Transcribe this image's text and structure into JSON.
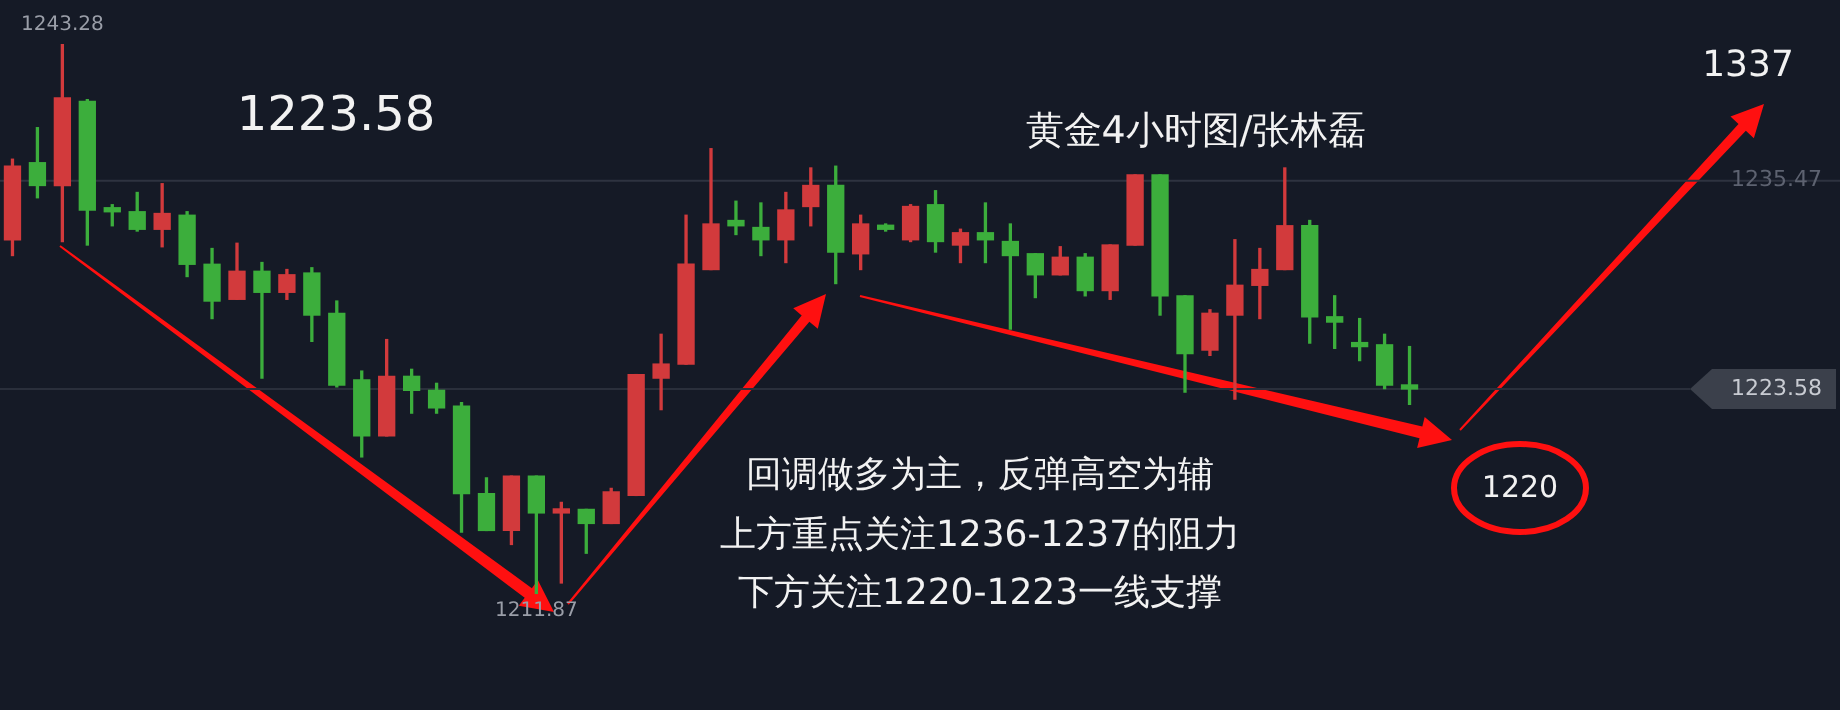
{
  "chart_data": {
    "type": "candlestick",
    "title": "黄金4小时图/张林磊",
    "categories": [
      null,
      null,
      null,
      null,
      null,
      null,
      null,
      null,
      null,
      null,
      null,
      null,
      null,
      null,
      null,
      null,
      null,
      null,
      null,
      null,
      null,
      null,
      null,
      null,
      null,
      null,
      null,
      null,
      null,
      null,
      null,
      null,
      null,
      null,
      null,
      null,
      null,
      null,
      null,
      null,
      null,
      null,
      null,
      null,
      null,
      null,
      null,
      null,
      null,
      null,
      null,
      null,
      null,
      null,
      null,
      null,
      null
    ],
    "ohlc": [
      [
        1232.1,
        1236.7,
        1231.2,
        1236.3
      ],
      [
        1236.5,
        1238.5,
        1234.5,
        1235.2
      ],
      [
        1235.2,
        1243.28,
        1232.0,
        1240.2
      ],
      [
        1240.0,
        1240.1,
        1231.8,
        1233.8
      ],
      [
        1233.9,
        1234.1,
        1232.9,
        1233.7
      ],
      [
        1233.7,
        1234.8,
        1232.6,
        1232.7
      ],
      [
        1232.7,
        1235.3,
        1231.7,
        1233.6
      ],
      [
        1233.5,
        1233.7,
        1230.0,
        1230.7
      ],
      [
        1230.7,
        1231.6,
        1227.6,
        1228.6
      ],
      [
        1228.7,
        1231.9,
        1228.7,
        1230.3
      ],
      [
        1230.3,
        1230.8,
        1224.2,
        1229.1
      ],
      [
        1229.1,
        1230.4,
        1228.7,
        1230.1
      ],
      [
        1230.2,
        1230.5,
        1226.3,
        1227.8
      ],
      [
        1227.9,
        1228.6,
        1223.7,
        1223.8
      ],
      [
        1224.1,
        1224.6,
        1219.7,
        1220.9
      ],
      [
        1220.9,
        1226.4,
        1220.9,
        1224.3
      ],
      [
        1224.3,
        1224.7,
        1222.2,
        1223.5
      ],
      [
        1223.5,
        1223.9,
        1222.2,
        1222.5
      ],
      [
        1222.6,
        1222.8,
        1215.4,
        1217.6
      ],
      [
        1217.6,
        1218.5,
        1215.5,
        1215.5
      ],
      [
        1215.5,
        1218.6,
        1214.7,
        1218.6
      ],
      [
        1218.6,
        1218.6,
        1211.87,
        1216.5
      ],
      [
        1216.5,
        1217.1,
        1212.5,
        1216.7
      ],
      [
        1216.7,
        1216.7,
        1214.2,
        1215.9
      ],
      [
        1215.9,
        1217.9,
        1215.9,
        1217.7
      ],
      [
        1217.5,
        1224.4,
        1217.5,
        1224.4
      ],
      [
        1224.2,
        1226.7,
        1222.4,
        1225.0
      ],
      [
        1225.0,
        1233.5,
        1225.0,
        1230.7
      ],
      [
        1230.4,
        1237.3,
        1230.4,
        1233.0
      ],
      [
        1233.2,
        1234.3,
        1232.4,
        1232.9
      ],
      [
        1232.8,
        1234.2,
        1231.2,
        1232.1
      ],
      [
        1232.1,
        1234.8,
        1230.8,
        1233.8
      ],
      [
        1234.0,
        1236.2,
        1232.9,
        1235.2
      ],
      [
        1235.2,
        1236.3,
        1229.6,
        1231.4
      ],
      [
        1231.3,
        1233.5,
        1230.4,
        1233.0
      ],
      [
        1232.9,
        1233.0,
        1232.6,
        1232.7
      ],
      [
        1232.1,
        1234.1,
        1232.0,
        1234.0
      ],
      [
        1234.1,
        1234.9,
        1231.4,
        1232.0
      ],
      [
        1231.8,
        1232.7,
        1230.8,
        1232.5
      ],
      [
        1232.5,
        1234.2,
        1230.8,
        1232.1
      ],
      [
        1232.0,
        1233.0,
        1227.0,
        1231.2
      ],
      [
        1231.3,
        1231.3,
        1228.8,
        1230.1
      ],
      [
        1230.1,
        1231.7,
        1230.1,
        1231.1
      ],
      [
        1231.1,
        1231.3,
        1228.9,
        1229.2
      ],
      [
        1229.2,
        1231.8,
        1228.7,
        1231.8
      ],
      [
        1231.8,
        1235.8,
        1231.8,
        1235.8
      ],
      [
        1235.8,
        1235.8,
        1227.8,
        1228.9
      ],
      [
        1228.9,
        1228.9,
        1223.4,
        1225.6
      ],
      [
        1225.8,
        1228.1,
        1225.5,
        1227.9
      ],
      [
        1227.8,
        1232.1,
        1223.0,
        1229.5
      ],
      [
        1229.5,
        1231.6,
        1227.6,
        1230.4
      ],
      [
        1230.4,
        1236.2,
        1230.4,
        1232.9
      ],
      [
        1232.9,
        1233.2,
        1226.2,
        1227.7
      ],
      [
        1227.7,
        1228.9,
        1225.9,
        1227.4
      ],
      [
        1226.2,
        1227.6,
        1225.2,
        1226.0
      ],
      [
        1226.1,
        1226.7,
        1223.6,
        1223.8
      ],
      [
        1223.8,
        1226.0,
        1222.7,
        1223.58
      ]
    ],
    "colors": [
      "#d23a3c",
      "#3cae3c",
      "#d23a3c",
      "#3cae3c",
      "#3cae3c",
      "#3cae3c",
      "#d23a3c",
      "#3cae3c",
      "#3cae3c",
      "#d23a3c",
      "#3cae3c",
      "#d23a3c",
      "#3cae3c",
      "#3cae3c",
      "#3cae3c",
      "#d23a3c",
      "#3cae3c",
      "#3cae3c",
      "#3cae3c",
      "#3cae3c",
      "#d23a3c",
      "#3cae3c",
      "#d23a3c",
      "#3cae3c",
      "#d23a3c",
      "#d23a3c",
      "#d23a3c",
      "#d23a3c",
      "#d23a3c",
      "#3cae3c",
      "#3cae3c",
      "#d23a3c",
      "#d23a3c",
      "#3cae3c",
      "#d23a3c",
      "#3cae3c",
      "#d23a3c",
      "#3cae3c",
      "#d23a3c",
      "#3cae3c",
      "#3cae3c",
      "#3cae3c",
      "#d23a3c",
      "#3cae3c",
      "#d23a3c",
      "#d23a3c",
      "#3cae3c",
      "#3cae3c",
      "#d23a3c",
      "#d23a3c",
      "#d23a3c",
      "#d23a3c",
      "#3cae3c",
      "#3cae3c",
      "#3cae3c",
      "#3cae3c",
      "#3cae3c"
    ],
    "tick_labels": false,
    "ref_lines": [
      {
        "axis": "y",
        "value": 1235.47,
        "label": "1235.47",
        "color": "#2e3340"
      },
      {
        "axis": "y",
        "value": 1223.58,
        "label": "1223.58",
        "color": "#2a2f3b"
      }
    ],
    "annotations": [
      "1223.58",
      {
        "text": "1243.28",
        "y": 1243.28
      },
      {
        "text": "1211.87",
        "y": 1211.87
      },
      "回调做多为主，反弹高空为辅",
      "上方重点关注1236-1237的阻力",
      "下方关注1220-1223一线支撑",
      "1220",
      "1337"
    ]
  }
}
